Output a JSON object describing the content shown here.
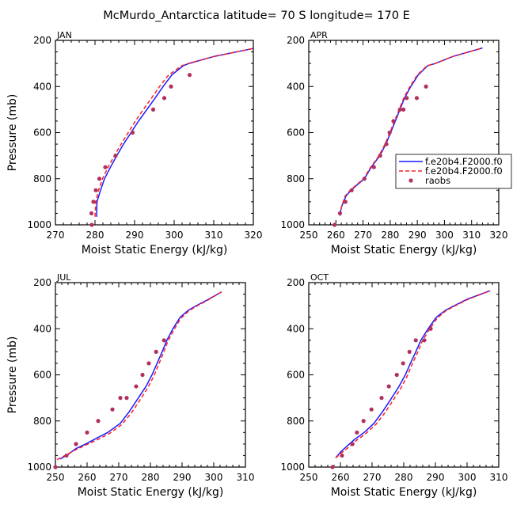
{
  "title": "McMurdo_Antarctica  latitude= 70 S longitude= 170 E",
  "colors": {
    "series1": "#1a1aff",
    "series2": "#ff2020",
    "raobs": "#b03060",
    "frame": "#000000"
  },
  "legend": {
    "panel": "APR",
    "entries": [
      {
        "label": "f.e20b4.F2000.f0",
        "style": "solid",
        "color": "#1a1aff"
      },
      {
        "label": "f.e20b4.F2000.f0",
        "style": "dashed",
        "color": "#ff2020"
      },
      {
        "label": "raobs",
        "style": "marker",
        "color": "#b03060"
      }
    ]
  },
  "chart_data": [
    {
      "type": "line",
      "panel": "JAN",
      "xlabel": "Moist Static Energy (kJ/kg)",
      "ylabel": "Pressure (mb)",
      "xlim": [
        270,
        320
      ],
      "ylim": [
        1000,
        200
      ],
      "xticks": [
        270,
        280,
        290,
        300,
        310,
        320
      ],
      "yticks": [
        200,
        400,
        600,
        800,
        1000
      ],
      "series": [
        {
          "name": "f.e20b4.F2000.f0",
          "style": "solid",
          "points": [
            [
              280.4,
              965
            ],
            [
              280.5,
              900
            ],
            [
              281.4,
              850
            ],
            [
              282.4,
              800
            ],
            [
              283.9,
              750
            ],
            [
              285.5,
              700
            ],
            [
              287.2,
              650
            ],
            [
              289.1,
              600
            ],
            [
              291.0,
              550
            ],
            [
              293.1,
              500
            ],
            [
              295.2,
              450
            ],
            [
              297.2,
              400
            ],
            [
              299.4,
              350
            ],
            [
              302.3,
              310
            ],
            [
              303.8,
              300
            ],
            [
              310,
              270
            ],
            [
              320,
              235
            ]
          ]
        },
        {
          "name": "f.e20b4.F2000.f0",
          "style": "dashed",
          "points": [
            [
              280.0,
              965
            ],
            [
              280.2,
              900
            ],
            [
              280.9,
              850
            ],
            [
              281.9,
              800
            ],
            [
              283.3,
              750
            ],
            [
              284.9,
              700
            ],
            [
              286.6,
              650
            ],
            [
              288.4,
              600
            ],
            [
              290.2,
              550
            ],
            [
              292.2,
              500
            ],
            [
              294.3,
              450
            ],
            [
              296.3,
              400
            ],
            [
              298.6,
              350
            ],
            [
              301.9,
              310
            ],
            [
              303.6,
              300
            ],
            [
              310,
              270
            ],
            [
              320,
              235
            ]
          ]
        },
        {
          "name": "raobs",
          "style": "marker",
          "points": [
            [
              279.2,
              1000
            ],
            [
              279.1,
              950
            ],
            [
              279.6,
              900
            ],
            [
              280.2,
              850
            ],
            [
              281.1,
              800
            ],
            [
              282.6,
              750
            ],
            [
              285.2,
              700
            ],
            [
              289.5,
              600
            ],
            [
              294.7,
              500
            ],
            [
              297.5,
              450
            ],
            [
              299.2,
              400
            ],
            [
              303.9,
              350
            ]
          ]
        }
      ]
    },
    {
      "type": "line",
      "panel": "APR",
      "xlabel": "Moist Static Energy (kJ/kg)",
      "ylabel": "",
      "xlim": [
        250,
        320
      ],
      "ylim": [
        1000,
        200
      ],
      "xticks": [
        250,
        260,
        270,
        280,
        290,
        300,
        310,
        320
      ],
      "yticks": [
        200,
        400,
        600,
        800,
        1000
      ],
      "series": [
        {
          "name": "f.e20b4.F2000.f0",
          "style": "solid",
          "points": [
            [
              261.5,
              960
            ],
            [
              262.0,
              925
            ],
            [
              263.7,
              875
            ],
            [
              265.6,
              850
            ],
            [
              268.0,
              825
            ],
            [
              270.5,
              800
            ],
            [
              273.0,
              750
            ],
            [
              276.2,
              700
            ],
            [
              278.4,
              650
            ],
            [
              280.2,
              600
            ],
            [
              281.9,
              550
            ],
            [
              283.6,
              500
            ],
            [
              285.3,
              450
            ],
            [
              287.6,
              400
            ],
            [
              290.3,
              350
            ],
            [
              293.8,
              310
            ],
            [
              296.7,
              300
            ],
            [
              303,
              270
            ],
            [
              314,
              233
            ]
          ]
        },
        {
          "name": "f.e20b4.F2000.f0",
          "style": "dashed",
          "points": [
            [
              261.5,
              960
            ],
            [
              262.0,
              925
            ],
            [
              263.4,
              875
            ],
            [
              265.3,
              850
            ],
            [
              267.7,
              825
            ],
            [
              270.2,
              800
            ],
            [
              272.8,
              750
            ],
            [
              275.9,
              700
            ],
            [
              278.1,
              650
            ],
            [
              279.9,
              600
            ],
            [
              281.6,
              550
            ],
            [
              283.3,
              500
            ],
            [
              285.0,
              450
            ],
            [
              287.3,
              400
            ],
            [
              290.0,
              350
            ],
            [
              293.6,
              310
            ],
            [
              296.7,
              300
            ],
            [
              303,
              270
            ],
            [
              314,
              233
            ]
          ]
        },
        {
          "name": "raobs",
          "style": "marker",
          "points": [
            [
              259.5,
              1000
            ],
            [
              261.5,
              950
            ],
            [
              263.5,
              900
            ],
            [
              265.8,
              850
            ],
            [
              270.5,
              800
            ],
            [
              274.0,
              750
            ],
            [
              276.3,
              700
            ],
            [
              278.6,
              650
            ],
            [
              279.8,
              600
            ],
            [
              281.2,
              550
            ],
            [
              283.6,
              500
            ],
            [
              284.9,
              500
            ],
            [
              286.1,
              450
            ],
            [
              289.8,
              450
            ],
            [
              293.2,
              400
            ]
          ]
        }
      ]
    },
    {
      "type": "line",
      "panel": "JUL",
      "xlabel": "Moist Static Energy (kJ/kg)",
      "ylabel": "Pressure (mb)",
      "xlim": [
        250,
        310
      ],
      "ylim": [
        1000,
        200
      ],
      "xticks": [
        250,
        260,
        270,
        280,
        290,
        300,
        310
      ],
      "yticks": [
        200,
        400,
        600,
        800,
        1000
      ],
      "series": [
        {
          "name": "f.e20b4.F2000.f0",
          "style": "solid",
          "points": [
            [
              251.5,
              965
            ],
            [
              254,
              945
            ],
            [
              256.5,
              920
            ],
            [
              259.5,
              900
            ],
            [
              263,
              875
            ],
            [
              266.5,
              850
            ],
            [
              270.5,
              810
            ],
            [
              273.3,
              760
            ],
            [
              276.2,
              700
            ],
            [
              278.6,
              650
            ],
            [
              280.5,
              600
            ],
            [
              282.1,
              550
            ],
            [
              283.7,
              500
            ],
            [
              285.2,
              450
            ],
            [
              287.1,
              400
            ],
            [
              289.4,
              350
            ],
            [
              292.0,
              320
            ],
            [
              294.5,
              300
            ],
            [
              298,
              275
            ],
            [
              302.5,
              240
            ]
          ]
        },
        {
          "name": "f.e20b4.F2000.f0",
          "style": "dashed",
          "points": [
            [
              250.5,
              968
            ],
            [
              253,
              950
            ],
            [
              256,
              928
            ],
            [
              259.5,
              905
            ],
            [
              263.5,
              880
            ],
            [
              267,
              855
            ],
            [
              271,
              815
            ],
            [
              274,
              765
            ],
            [
              276.9,
              705
            ],
            [
              279.2,
              655
            ],
            [
              281.1,
              605
            ],
            [
              282.6,
              555
            ],
            [
              284.1,
              505
            ],
            [
              285.5,
              455
            ],
            [
              287.4,
              405
            ],
            [
              289.6,
              355
            ],
            [
              292.2,
              322
            ],
            [
              294.6,
              302
            ],
            [
              298,
              277
            ],
            [
              302.5,
              240
            ]
          ]
        },
        {
          "name": "raobs",
          "style": "marker",
          "points": [
            [
              250,
              1000
            ],
            [
              253.5,
              950
            ],
            [
              256.5,
              900
            ],
            [
              260,
              850
            ],
            [
              263.5,
              800
            ],
            [
              268.0,
              750
            ],
            [
              270.5,
              700
            ],
            [
              272.5,
              700
            ],
            [
              275.5,
              650
            ],
            [
              277.5,
              600
            ],
            [
              279.5,
              550
            ],
            [
              281.8,
              500
            ],
            [
              284.3,
              450
            ]
          ]
        }
      ]
    },
    {
      "type": "line",
      "panel": "OCT",
      "xlabel": "Moist Static Energy (kJ/kg)",
      "ylabel": "",
      "xlim": [
        250,
        310
      ],
      "ylim": [
        1000,
        200
      ],
      "xticks": [
        250,
        260,
        270,
        280,
        290,
        300,
        310
      ],
      "yticks": [
        200,
        400,
        600,
        800,
        1000
      ],
      "series": [
        {
          "name": "f.e20b4.F2000.f0",
          "style": "solid",
          "points": [
            [
              258.5,
              960
            ],
            [
              260.0,
              935
            ],
            [
              262.0,
              910
            ],
            [
              264.5,
              880
            ],
            [
              267.5,
              850
            ],
            [
              270.6,
              810
            ],
            [
              273.3,
              760
            ],
            [
              276.2,
              700
            ],
            [
              278.5,
              650
            ],
            [
              280.5,
              600
            ],
            [
              282.1,
              550
            ],
            [
              283.8,
              500
            ],
            [
              285.4,
              450
            ],
            [
              287.7,
              400
            ],
            [
              290.3,
              350
            ],
            [
              293.2,
              320
            ],
            [
              296.0,
              300
            ],
            [
              300,
              272
            ],
            [
              307.3,
              235
            ]
          ]
        },
        {
          "name": "f.e20b4.F2000.f0",
          "style": "dashed",
          "points": [
            [
              258.5,
              960
            ],
            [
              260.2,
              940
            ],
            [
              262.5,
              915
            ],
            [
              265.0,
              885
            ],
            [
              268.0,
              855
            ],
            [
              271.2,
              815
            ],
            [
              274.0,
              765
            ],
            [
              276.9,
              705
            ],
            [
              279.2,
              655
            ],
            [
              281.1,
              605
            ],
            [
              282.6,
              555
            ],
            [
              284.3,
              505
            ],
            [
              285.8,
              455
            ],
            [
              288.0,
              405
            ],
            [
              290.5,
              355
            ],
            [
              293.3,
              322
            ],
            [
              296.0,
              302
            ],
            [
              300,
              274
            ],
            [
              307.3,
              235
            ]
          ]
        },
        {
          "name": "raobs",
          "style": "marker",
          "points": [
            [
              257.5,
              1000
            ],
            [
              260.5,
              950
            ],
            [
              263.8,
              900
            ],
            [
              265.2,
              850
            ],
            [
              267.3,
              800
            ],
            [
              269.8,
              750
            ],
            [
              273.0,
              700
            ],
            [
              275.3,
              650
            ],
            [
              277.8,
              600
            ],
            [
              279.8,
              550
            ],
            [
              281.8,
              500
            ],
            [
              283.8,
              450
            ],
            [
              286.5,
              450
            ],
            [
              288.5,
              400
            ]
          ]
        }
      ]
    }
  ]
}
